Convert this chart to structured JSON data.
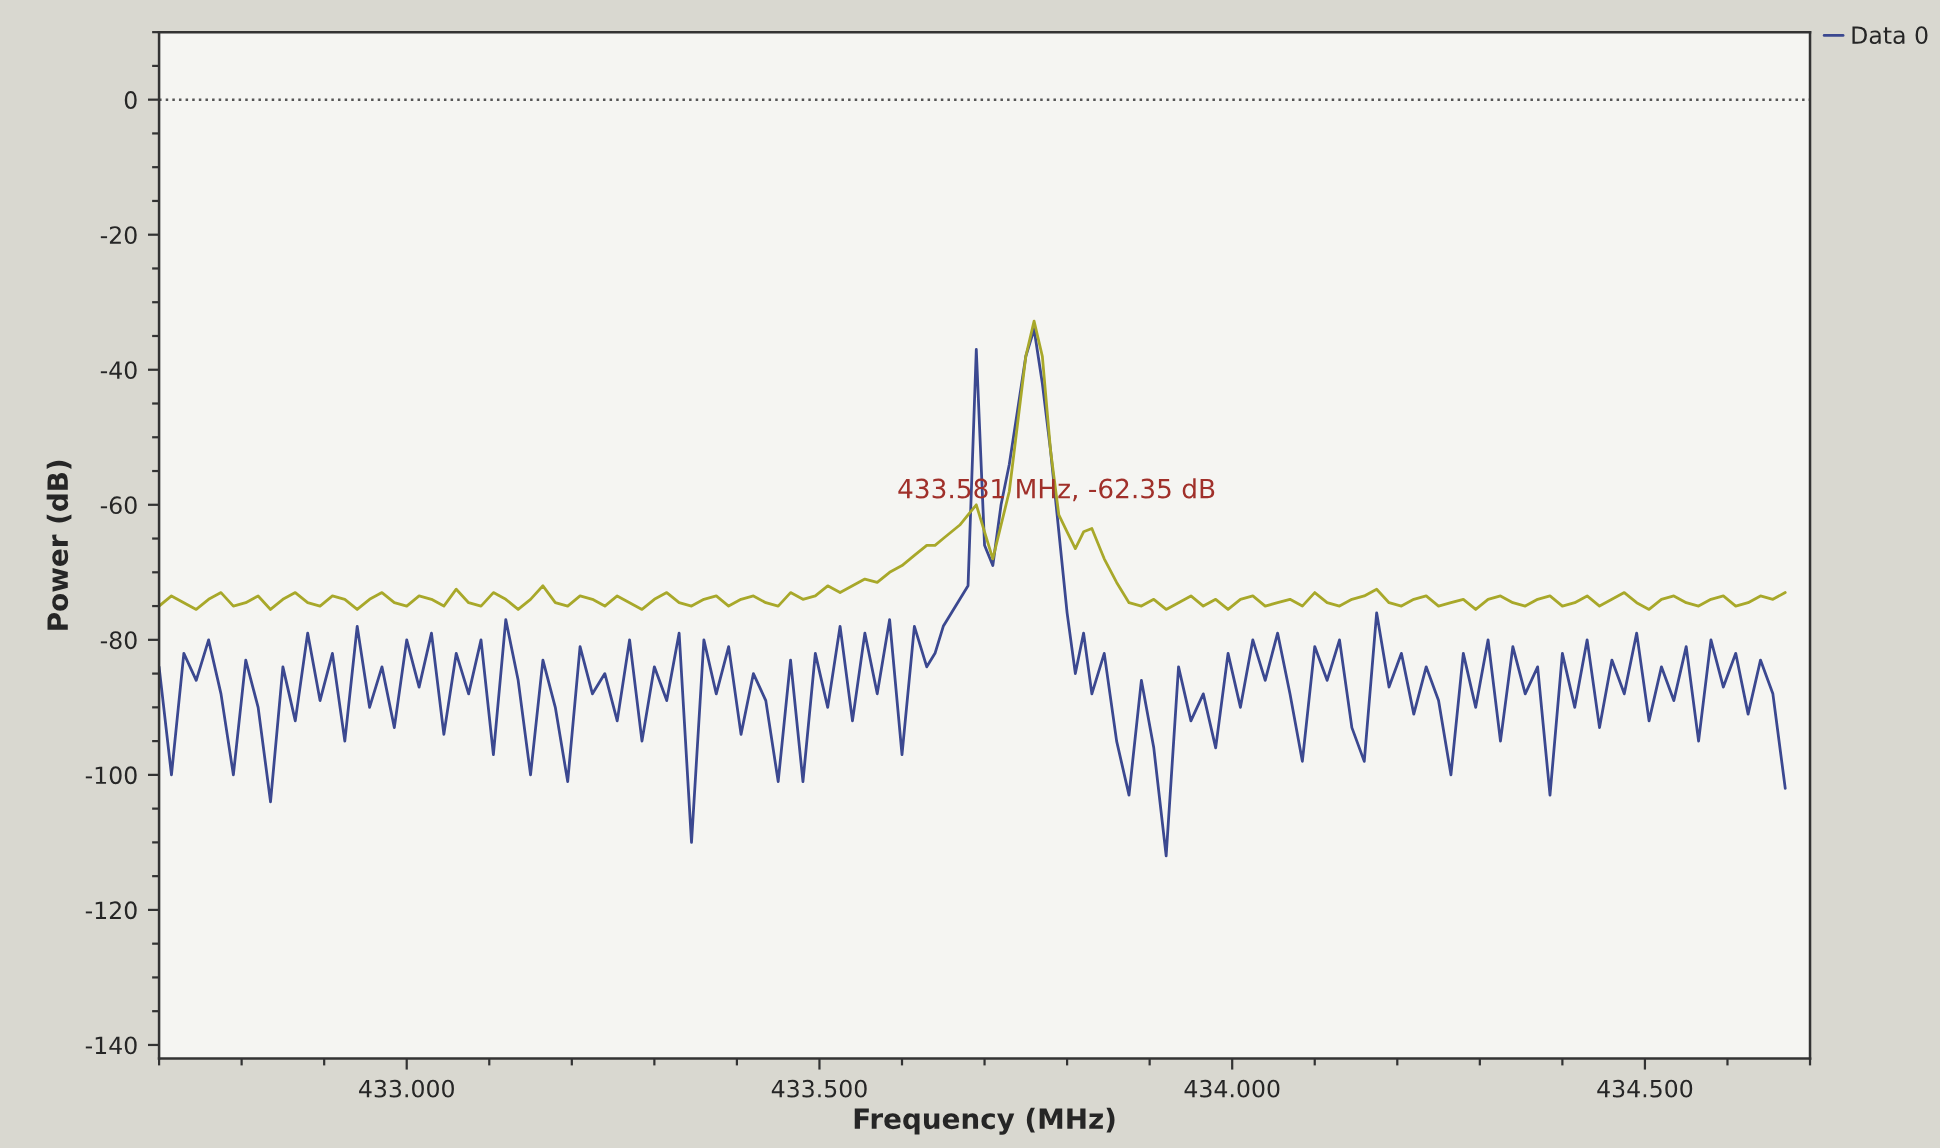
{
  "chart_data": {
    "type": "line",
    "xlabel": "Frequency (MHz)",
    "ylabel": "Power (dB)",
    "x": [
      432.7,
      432.715,
      432.73,
      432.745,
      432.76,
      432.775,
      432.79,
      432.805,
      432.82,
      432.835,
      432.85,
      432.865,
      432.88,
      432.895,
      432.91,
      432.925,
      432.94,
      432.955,
      432.97,
      432.985,
      433.0,
      433.015,
      433.03,
      433.045,
      433.06,
      433.075,
      433.09,
      433.105,
      433.12,
      433.135,
      433.15,
      433.165,
      433.18,
      433.195,
      433.21,
      433.225,
      433.24,
      433.255,
      433.27,
      433.285,
      433.3,
      433.315,
      433.33,
      433.345,
      433.36,
      433.375,
      433.39,
      433.405,
      433.42,
      433.435,
      433.45,
      433.465,
      433.48,
      433.495,
      433.51,
      433.525,
      433.54,
      433.555,
      433.57,
      433.585,
      433.6,
      433.615,
      433.63,
      433.64,
      433.65,
      433.66,
      433.67,
      433.68,
      433.69,
      433.7,
      433.71,
      433.72,
      433.73,
      433.74,
      433.75,
      433.76,
      433.77,
      433.78,
      433.79,
      433.8,
      433.81,
      433.82,
      433.83,
      433.845,
      433.86,
      433.875,
      433.89,
      433.905,
      433.92,
      433.935,
      433.95,
      433.965,
      433.98,
      433.995,
      434.01,
      434.025,
      434.04,
      434.055,
      434.07,
      434.085,
      434.1,
      434.115,
      434.13,
      434.145,
      434.16,
      434.175,
      434.19,
      434.205,
      434.22,
      434.235,
      434.25,
      434.265,
      434.28,
      434.295,
      434.31,
      434.325,
      434.34,
      434.355,
      434.37,
      434.385,
      434.4,
      434.415,
      434.43,
      434.445,
      434.46,
      434.475,
      434.49,
      434.505,
      434.52,
      434.535,
      434.55,
      434.565,
      434.58,
      434.595,
      434.61,
      434.625,
      434.64,
      434.655,
      434.67
    ],
    "series": [
      {
        "name": "Data 0",
        "color": "#3b4890",
        "values": [
          -84,
          -100,
          -82,
          -86,
          -80,
          -88,
          -100,
          -83,
          -90,
          -104,
          -84,
          -92,
          -79,
          -89,
          -82,
          -95,
          -78,
          -90,
          -84,
          -93,
          -80,
          -87,
          -79,
          -94,
          -82,
          -88,
          -80,
          -97,
          -77,
          -86,
          -100,
          -83,
          -90,
          -101,
          -81,
          -88,
          -85,
          -92,
          -80,
          -95,
          -84,
          -89,
          -79,
          -110,
          -80,
          -88,
          -81,
          -94,
          -85,
          -89,
          -101,
          -83,
          -101,
          -82,
          -90,
          -78,
          -92,
          -79,
          -88,
          -77,
          -97,
          -78,
          -84,
          -82,
          -78,
          -76,
          -74,
          -72,
          -37,
          -66,
          -69,
          -60,
          -54,
          -46,
          -38,
          -34,
          -42,
          -52,
          -64,
          -76,
          -85,
          -79,
          -88,
          -82,
          -95,
          -103,
          -86,
          -96,
          -112,
          -84,
          -92,
          -88,
          -96,
          -82,
          -90,
          -80,
          -86,
          -79,
          -88,
          -98,
          -81,
          -86,
          -80,
          -93,
          -98,
          -76,
          -87,
          -82,
          -91,
          -84,
          -89,
          -100,
          -82,
          -90,
          -80,
          -95,
          -81,
          -88,
          -84,
          -103,
          -82,
          -90,
          -80,
          -93,
          -83,
          -88,
          -79,
          -92,
          -84,
          -89,
          -81,
          -95,
          -80,
          -87,
          -82,
          -91,
          -83,
          -88,
          -102
        ]
      },
      {
        "color": "#a8a82a",
        "values": [
          -75,
          -73.5,
          -74.5,
          -75.5,
          -74,
          -73,
          -75,
          -74.5,
          -73.5,
          -75.5,
          -74,
          -73,
          -74.5,
          -75,
          -73.5,
          -74,
          -75.5,
          -74,
          -73,
          -74.5,
          -75,
          -73.5,
          -74,
          -75,
          -72.5,
          -74.5,
          -75,
          -73,
          -74,
          -75.5,
          -74,
          -72,
          -74.5,
          -75,
          -73.5,
          -74,
          -75,
          -73.5,
          -74.5,
          -75.5,
          -74,
          -73,
          -74.5,
          -75,
          -74,
          -73.5,
          -75,
          -74,
          -73.5,
          -74.5,
          -75,
          -73,
          -74,
          -73.5,
          -72,
          -73,
          -72,
          -71,
          -71.5,
          -70,
          -69,
          -67.5,
          -66,
          -66,
          -65,
          -64,
          -63,
          -61.5,
          -60,
          -64,
          -68,
          -63,
          -58,
          -48,
          -38,
          -32.8,
          -38,
          -52,
          -61.5,
          -64,
          -66.5,
          -64,
          -63.5,
          -68,
          -71.5,
          -74.5,
          -75,
          -74,
          -75.5,
          -74.5,
          -73.5,
          -75,
          -74,
          -75.5,
          -74,
          -73.5,
          -75,
          -74.5,
          -74,
          -75,
          -73,
          -74.5,
          -75,
          -74,
          -73.5,
          -72.5,
          -74.5,
          -75,
          -74,
          -73.5,
          -75,
          -74.5,
          -74,
          -75.5,
          -74,
          -73.5,
          -74.5,
          -75,
          -74,
          -73.5,
          -75,
          -74.5,
          -73.5,
          -75,
          -74,
          -73,
          -74.5,
          -75.5,
          -74,
          -73.5,
          -74.5,
          -75,
          -74,
          -73.5,
          -75,
          -74.5,
          -73.5,
          -74,
          -73
        ]
      }
    ],
    "xlim": [
      432.7,
      434.7
    ],
    "xticks": [
      {
        "value": 432.7,
        "label": null
      },
      {
        "value": 432.8,
        "label": null
      },
      {
        "value": 432.9,
        "label": null
      },
      {
        "value": 433.0,
        "label": "433.000"
      },
      {
        "value": 433.1,
        "label": null
      },
      {
        "value": 433.2,
        "label": null
      },
      {
        "value": 433.3,
        "label": null
      },
      {
        "value": 433.4,
        "label": null
      },
      {
        "value": 433.5,
        "label": "433.500"
      },
      {
        "value": 433.6,
        "label": null
      },
      {
        "value": 433.7,
        "label": null
      },
      {
        "value": 433.8,
        "label": null
      },
      {
        "value": 433.9,
        "label": null
      },
      {
        "value": 434.0,
        "label": "434.000"
      },
      {
        "value": 434.1,
        "label": null
      },
      {
        "value": 434.2,
        "label": null
      },
      {
        "value": 434.3,
        "label": null
      },
      {
        "value": 434.4,
        "label": null
      },
      {
        "value": 434.5,
        "label": "434.500"
      },
      {
        "value": 434.6,
        "label": null
      },
      {
        "value": 434.7,
        "label": null
      }
    ],
    "ylim": [
      -142,
      10
    ],
    "yticks": [
      {
        "value": 10,
        "label": null
      },
      {
        "value": 5,
        "label": null
      },
      0,
      {
        "value": -5,
        "label": null
      },
      {
        "value": -10,
        "label": null
      },
      {
        "value": -15,
        "label": null
      },
      -20,
      {
        "value": -25,
        "label": null
      },
      {
        "value": -30,
        "label": null
      },
      {
        "value": -35,
        "label": null
      },
      -40,
      {
        "value": -45,
        "label": null
      },
      {
        "value": -50,
        "label": null
      },
      {
        "value": -55,
        "label": null
      },
      -60,
      {
        "value": -65,
        "label": null
      },
      {
        "value": -70,
        "label": null
      },
      {
        "value": -75,
        "label": null
      },
      -80,
      {
        "value": -85,
        "label": null
      },
      {
        "value": -90,
        "label": null
      },
      {
        "value": -95,
        "label": null
      },
      -100,
      {
        "value": -105,
        "label": null
      },
      {
        "value": -110,
        "label": null
      },
      {
        "value": -115,
        "label": null
      },
      -120,
      {
        "value": -125,
        "label": null
      },
      {
        "value": -130,
        "label": null
      },
      {
        "value": -135,
        "label": null
      },
      -140
    ],
    "ref_lines": [
      {
        "axis": "y",
        "value": 0,
        "color": "#555555",
        "line_style": "dotted"
      }
    ],
    "annotations": [
      "433.581 MHz, -62.35 dB"
    ],
    "grid": false,
    "legend": "top right",
    "marker": "none",
    "line_style": "solid"
  }
}
